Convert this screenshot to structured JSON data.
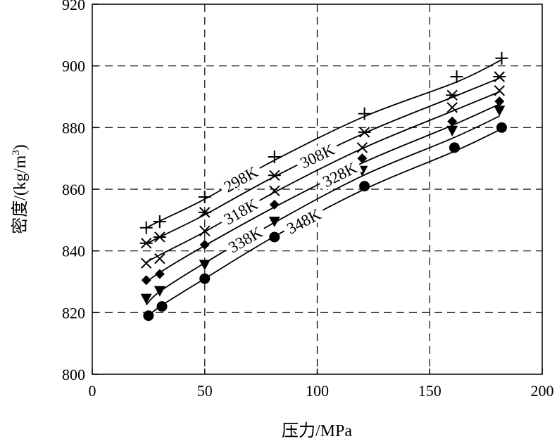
{
  "chart_data": {
    "type": "line",
    "title": "",
    "xlabel": "压力/MPa",
    "ylabel": "密度/(kg/m",
    "ylabel_superscript": "3",
    "ylabel_suffix": ")",
    "xlim": [
      0,
      200
    ],
    "ylim": [
      800,
      920
    ],
    "xticks": [
      "0",
      "50",
      "100",
      "150",
      "200"
    ],
    "yticks": [
      "800",
      "820",
      "840",
      "860",
      "880",
      "900",
      "920"
    ],
    "x_tick_values": [
      0,
      50,
      100,
      150,
      200
    ],
    "y_tick_values": [
      800,
      820,
      840,
      860,
      880,
      900,
      920
    ],
    "grid": true,
    "grid_style": "dashed",
    "series": [
      {
        "name": "298K",
        "marker": "plus",
        "x": [
          24,
          30,
          50,
          81,
          121,
          162,
          182
        ],
        "y": [
          847.5,
          849.5,
          857.5,
          870.5,
          884.5,
          896.5,
          902.5
        ],
        "curve_y": [
          847.5,
          849.7,
          856.8,
          869.4,
          883.6,
          894.8,
          902.0
        ]
      },
      {
        "name": "308K",
        "marker": "asterisk",
        "x": [
          24,
          30,
          50,
          81,
          121,
          160,
          181
        ],
        "y": [
          842.5,
          844.5,
          852.5,
          864.5,
          878.5,
          890.5,
          896.5
        ],
        "curve_y": [
          842.3,
          844.5,
          851.7,
          864.1,
          878.2,
          889.8,
          896.0
        ]
      },
      {
        "name": "318K",
        "marker": "x",
        "x": [
          24,
          30,
          50,
          81,
          120,
          160,
          181
        ],
        "y": [
          836.0,
          837.5,
          846.5,
          859.5,
          873.5,
          886.5,
          892.0
        ],
        "curve_y": [
          836.3,
          838.7,
          846.2,
          859.0,
          873.2,
          885.3,
          891.6
        ]
      },
      {
        "name": "328K",
        "marker": "diamond",
        "x": [
          24,
          30,
          50,
          81,
          120,
          160,
          181
        ],
        "y": [
          830.5,
          832.5,
          842.0,
          855.0,
          870.0,
          882.0,
          888.5
        ],
        "curve_y": [
          829.8,
          833.0,
          841.7,
          854.2,
          868.5,
          880.7,
          887.6
        ]
      },
      {
        "name": "338K",
        "marker": "triangle-down",
        "x": [
          24,
          30,
          50,
          81,
          120,
          160,
          181
        ],
        "y": [
          824.5,
          827.0,
          835.5,
          849.5,
          866.0,
          879.0,
          885.5
        ],
        "curve_y": [
          822.5,
          826.8,
          836.1,
          849.2,
          864.3,
          876.5,
          883.7
        ]
      },
      {
        "name": "348K",
        "marker": "circle",
        "x": [
          25,
          31,
          50,
          81,
          121,
          161,
          182
        ],
        "y": [
          819.0,
          822.0,
          831.0,
          844.5,
          861.0,
          873.5,
          880.0
        ],
        "curve_y": [
          819.0,
          822.4,
          831.0,
          844.7,
          860.0,
          872.3,
          879.6
        ]
      }
    ]
  }
}
